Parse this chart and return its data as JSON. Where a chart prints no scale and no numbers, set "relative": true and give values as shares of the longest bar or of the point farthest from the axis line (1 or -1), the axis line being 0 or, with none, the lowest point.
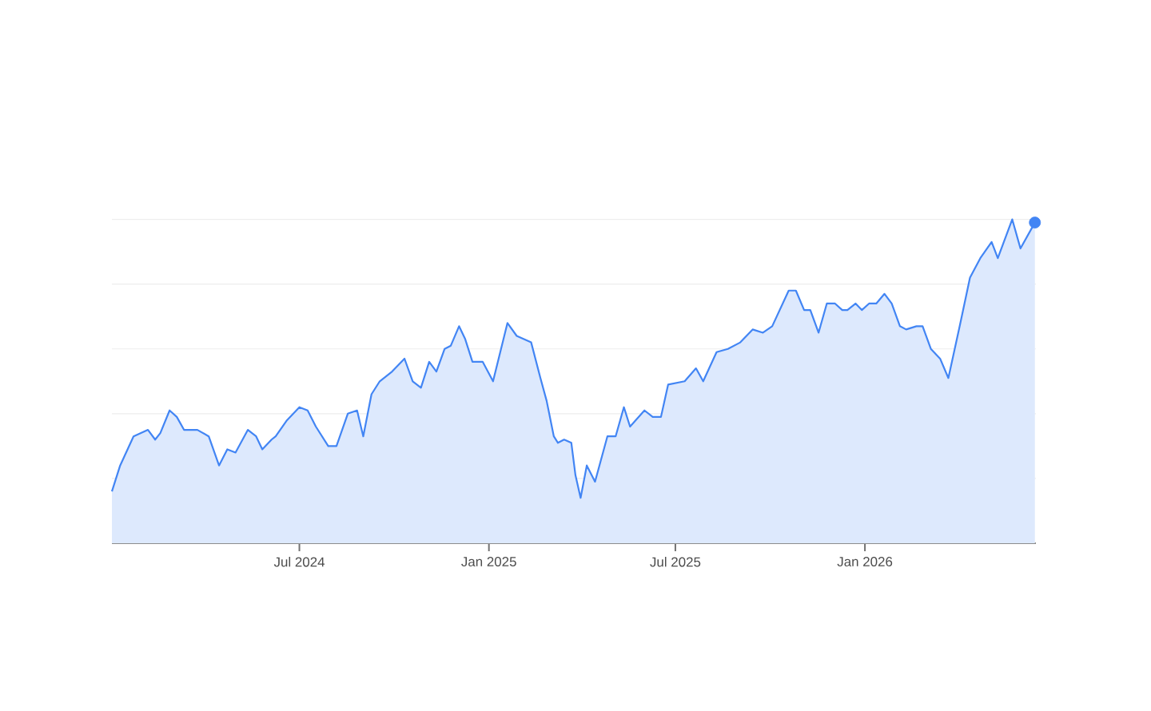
{
  "chart_data": {
    "type": "area",
    "relative": true,
    "color": "#4285f4",
    "grid": "y",
    "series": [
      {
        "type": "scatter",
        "color": "#4285f4",
        "marker": "circle",
        "x": [
          "2026-06-15"
        ],
        "values": [
          0.99
        ]
      }
    ],
    "xlim": [
      "2024-01-01",
      "2026-06-16"
    ],
    "xticks": [
      {
        "value": "2024-07-01",
        "label": "Jul 2024"
      },
      {
        "value": "2025-01-01",
        "label": "Jan 2025"
      },
      {
        "value": "2025-07-01",
        "label": "Jul 2025"
      },
      {
        "value": "2026-01-01",
        "label": "Jan 2026"
      }
    ],
    "x": [
      "2024-01-01",
      "2024-01-09",
      "2024-01-22",
      "2024-02-05",
      "2024-02-12",
      "2024-02-17",
      "2024-02-26",
      "2024-03-04",
      "2024-03-11",
      "2024-03-24",
      "2024-04-04",
      "2024-04-14",
      "2024-04-22",
      "2024-04-30",
      "2024-05-12",
      "2024-05-20",
      "2024-05-26",
      "2024-06-04",
      "2024-06-08",
      "2024-06-19",
      "2024-07-01",
      "2024-07-09",
      "2024-07-17",
      "2024-07-23",
      "2024-07-29",
      "2024-08-06",
      "2024-08-17",
      "2024-08-26",
      "2024-09-01",
      "2024-09-09",
      "2024-09-17",
      "2024-09-29",
      "2024-10-11",
      "2024-10-19",
      "2024-10-27",
      "2024-11-04",
      "2024-11-11",
      "2024-11-19",
      "2024-11-25",
      "2024-12-03",
      "2024-12-09",
      "2024-12-16",
      "2024-12-26",
      "2025-01-05",
      "2025-01-19",
      "2025-01-28",
      "2025-02-11",
      "2025-02-20",
      "2025-02-26",
      "2025-03-05",
      "2025-03-09",
      "2025-03-15",
      "2025-03-22",
      "2025-03-26",
      "2025-03-31",
      "2025-04-06",
      "2025-04-14",
      "2025-04-26",
      "2025-05-04",
      "2025-05-12",
      "2025-05-18",
      "2025-06-01",
      "2025-06-09",
      "2025-06-17",
      "2025-06-24",
      "2025-07-10",
      "2025-07-21",
      "2025-07-28",
      "2025-08-10",
      "2025-08-21",
      "2025-09-02",
      "2025-09-14",
      "2025-09-24",
      "2025-10-03",
      "2025-10-19",
      "2025-10-26",
      "2025-11-03",
      "2025-11-09",
      "2025-11-17",
      "2025-11-25",
      "2025-12-03",
      "2025-12-10",
      "2025-12-15",
      "2025-12-23",
      "2025-12-29",
      "2026-01-05",
      "2026-01-12",
      "2026-01-20",
      "2026-01-27",
      "2026-02-04",
      "2026-02-10",
      "2026-02-20",
      "2026-02-26",
      "2026-03-06",
      "2026-03-15",
      "2026-03-23",
      "2026-04-03",
      "2026-04-13",
      "2026-04-23",
      "2026-05-04",
      "2026-05-10",
      "2026-05-24",
      "2026-06-01",
      "2026-06-15"
    ],
    "values": [
      0.16,
      0.24,
      0.33,
      0.35,
      0.32,
      0.34,
      0.41,
      0.39,
      0.35,
      0.35,
      0.33,
      0.24,
      0.29,
      0.28,
      0.35,
      0.33,
      0.29,
      0.32,
      0.33,
      0.38,
      0.42,
      0.41,
      0.36,
      0.33,
      0.3,
      0.3,
      0.4,
      0.41,
      0.33,
      0.46,
      0.5,
      0.53,
      0.57,
      0.5,
      0.48,
      0.56,
      0.53,
      0.6,
      0.61,
      0.67,
      0.63,
      0.56,
      0.56,
      0.5,
      0.68,
      0.64,
      0.62,
      0.51,
      0.44,
      0.33,
      0.31,
      0.32,
      0.31,
      0.21,
      0.14,
      0.24,
      0.19,
      0.33,
      0.33,
      0.42,
      0.36,
      0.41,
      0.39,
      0.39,
      0.49,
      0.5,
      0.54,
      0.5,
      0.59,
      0.6,
      0.62,
      0.66,
      0.65,
      0.67,
      0.78,
      0.78,
      0.72,
      0.72,
      0.65,
      0.74,
      0.74,
      0.72,
      0.72,
      0.74,
      0.72,
      0.74,
      0.74,
      0.77,
      0.74,
      0.67,
      0.66,
      0.67,
      0.67,
      0.6,
      0.57,
      0.51,
      0.67,
      0.82,
      0.88,
      0.93,
      0.88,
      1.0,
      0.91,
      0.99
    ]
  }
}
